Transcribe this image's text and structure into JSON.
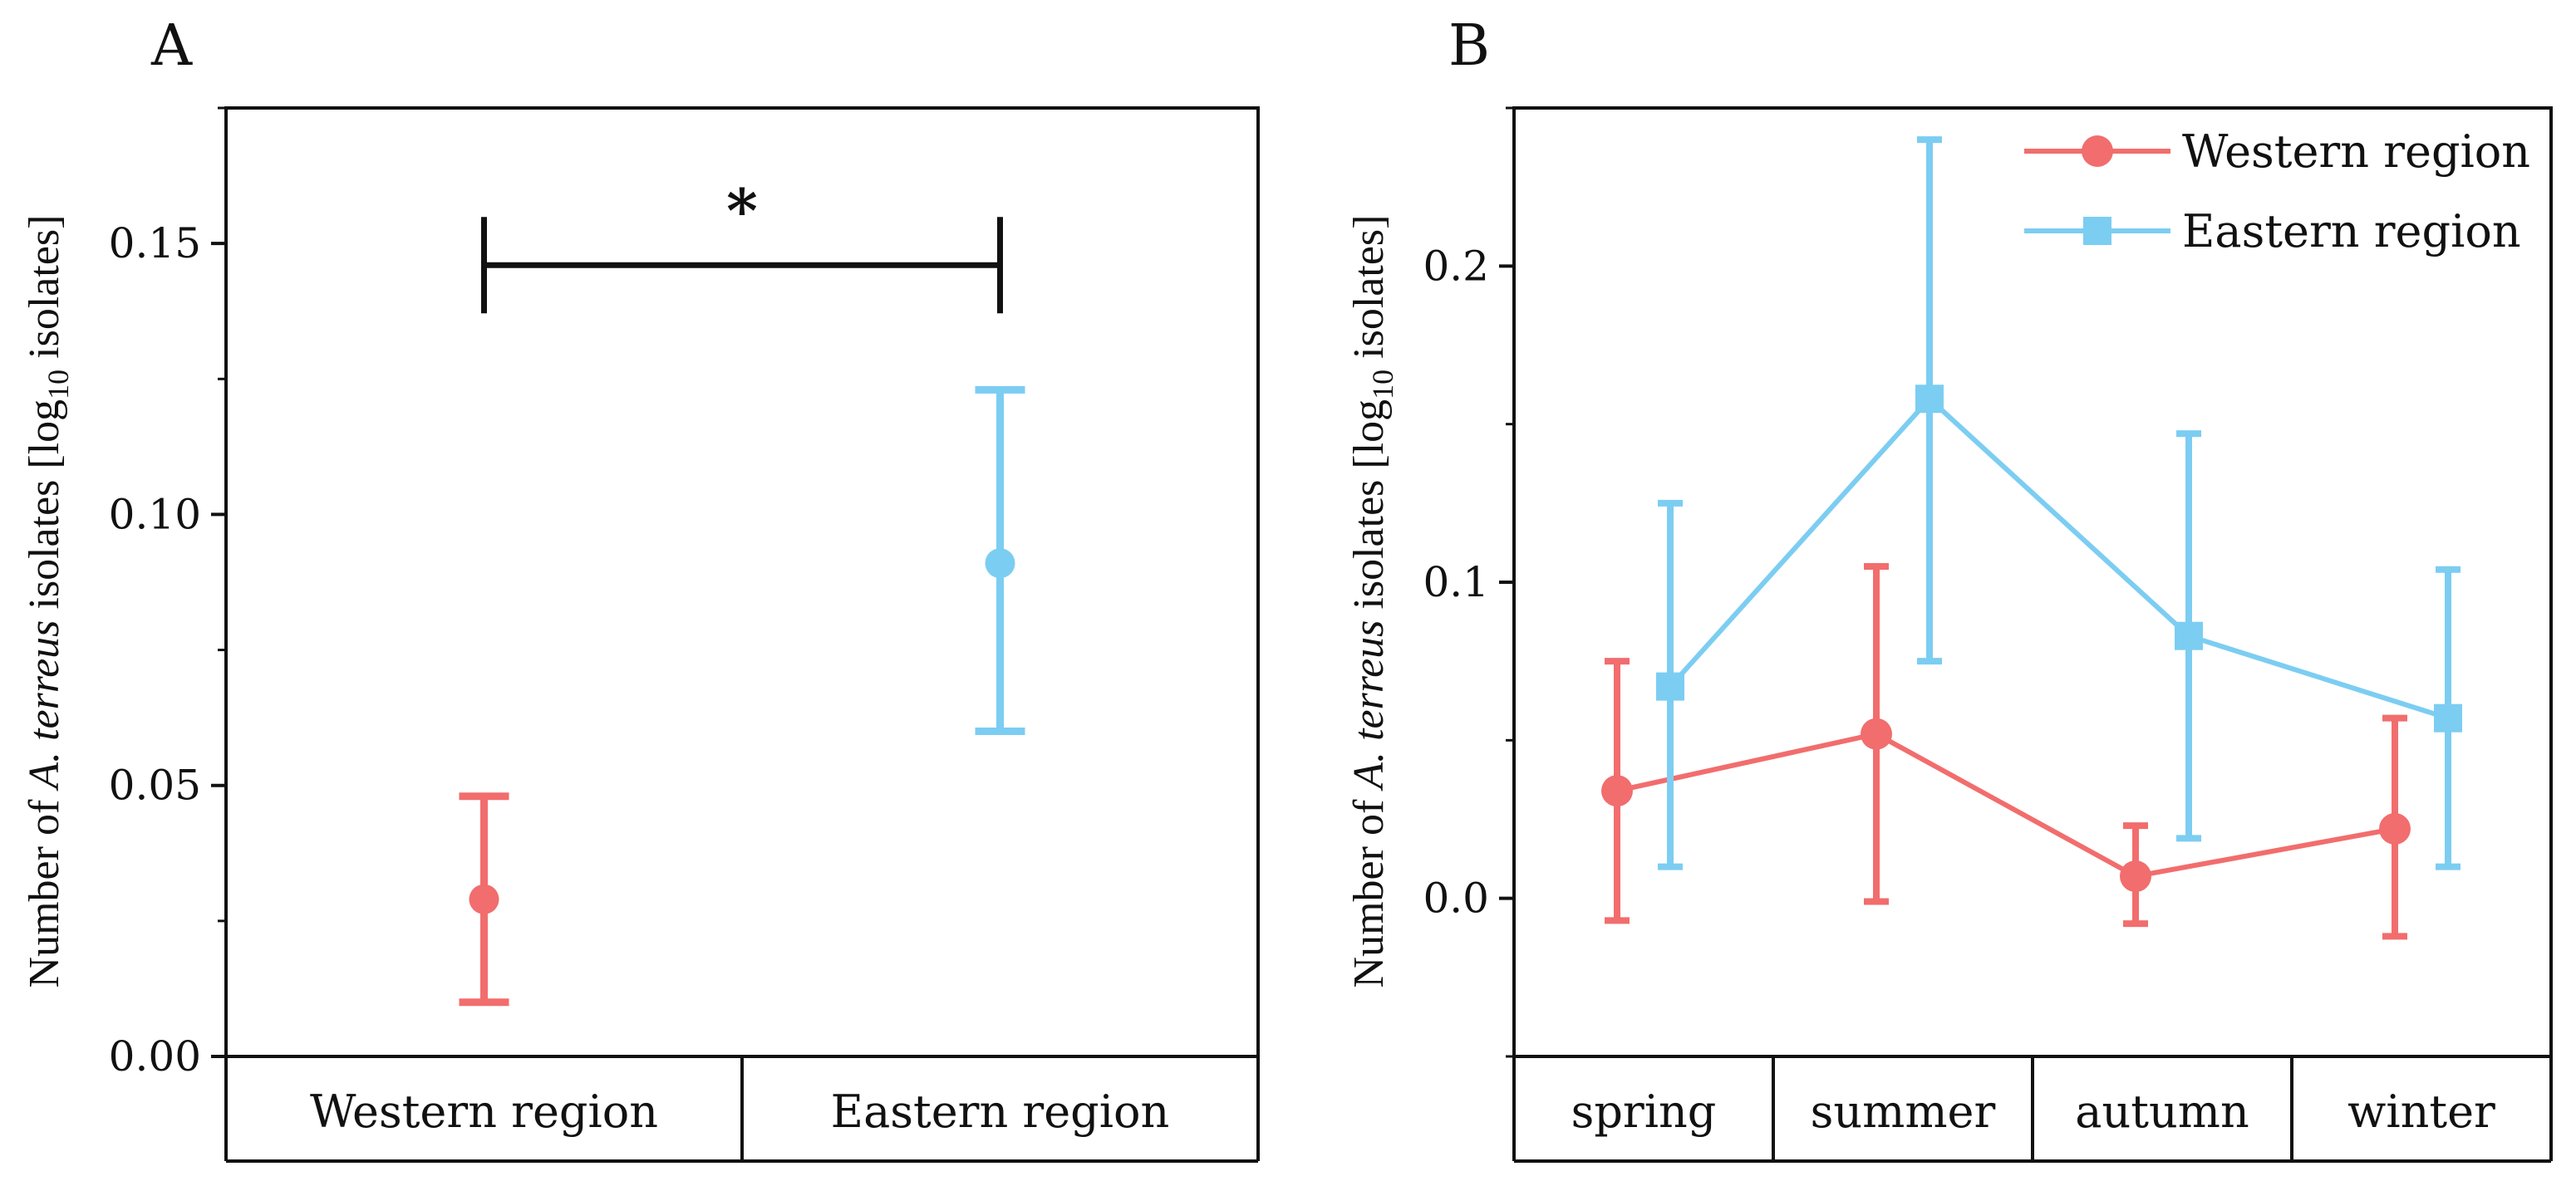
{
  "colors": {
    "western": "#f26d6d",
    "eastern": "#7ccdf2",
    "axis": "#111111"
  },
  "chart_data": [
    {
      "type": "scatter",
      "panel": "A",
      "ylabel": {
        "prefix": "Number of ",
        "species": "A. terreus",
        "middle": " isolates [log",
        "subscript": "10",
        "suffix": " isolates]"
      },
      "ylim": [
        0,
        0.175
      ],
      "yticks": [
        0.0,
        0.05,
        0.1,
        0.15
      ],
      "ytick_labels": [
        "0.00",
        "0.05",
        "0.10",
        "0.15"
      ],
      "categories": [
        "Western region",
        "Eastern region"
      ],
      "series": [
        {
          "name": "Western region",
          "key": "western",
          "value": 0.029,
          "err_low": 0.01,
          "err_high": 0.048
        },
        {
          "name": "Eastern region",
          "key": "eastern",
          "value": 0.091,
          "err_low": 0.06,
          "err_high": 0.123
        }
      ],
      "significance": {
        "label": "*",
        "between": [
          0,
          1
        ],
        "y": 0.146
      }
    },
    {
      "type": "line",
      "panel": "B",
      "ylabel": {
        "prefix": "Number of ",
        "species": "A. terreus",
        "middle": " isolates [log",
        "subscript": "10",
        "suffix": " isolates]"
      },
      "ylim": [
        -0.05,
        0.25
      ],
      "yticks": [
        0.0,
        0.1,
        0.2
      ],
      "ytick_labels": [
        "0.0",
        "0.1",
        "0.2"
      ],
      "categories": [
        "spring",
        "summer",
        "autumn",
        "winter"
      ],
      "legend_position": "top-right",
      "series": [
        {
          "name": "Western region",
          "key": "western",
          "marker": "circle",
          "values": [
            0.034,
            0.052,
            0.007,
            0.022
          ],
          "err_low": [
            -0.007,
            -0.001,
            -0.008,
            -0.012
          ],
          "err_high": [
            0.075,
            0.105,
            0.023,
            0.057
          ]
        },
        {
          "name": "Eastern region",
          "key": "eastern",
          "marker": "square",
          "values": [
            0.067,
            0.158,
            0.083,
            0.057
          ],
          "err_low": [
            0.01,
            0.075,
            0.019,
            0.01
          ],
          "err_high": [
            0.125,
            0.24,
            0.147,
            0.104
          ]
        }
      ]
    }
  ]
}
